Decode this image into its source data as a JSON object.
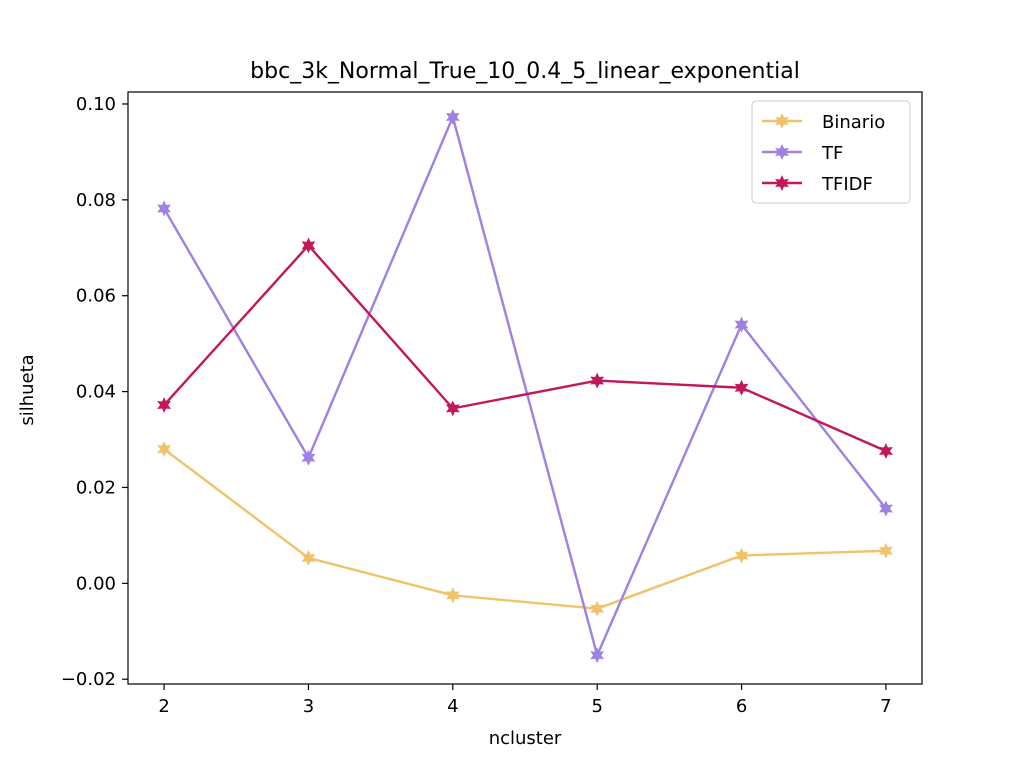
{
  "chart_data": {
    "type": "line",
    "title": "bbc_3k_Normal_True_10_0.4_5_linear_exponential",
    "xlabel": "ncluster",
    "ylabel": "silhueta",
    "x": [
      2,
      3,
      4,
      5,
      6,
      7
    ],
    "xlim": [
      1.75,
      7.25
    ],
    "ylim": [
      -0.021,
      0.1025
    ],
    "x_ticks": [
      "2",
      "3",
      "4",
      "5",
      "6",
      "7"
    ],
    "y_ticks": [
      {
        "value": -0.02,
        "label": "−0.02"
      },
      {
        "value": 0.0,
        "label": "0.00"
      },
      {
        "value": 0.02,
        "label": "0.02"
      },
      {
        "value": 0.04,
        "label": "0.04"
      },
      {
        "value": 0.06,
        "label": "0.06"
      },
      {
        "value": 0.08,
        "label": "0.08"
      },
      {
        "value": 0.1,
        "label": "0.10"
      }
    ],
    "legend_position": "top-right",
    "grid": false,
    "marker": "star",
    "series": [
      {
        "name": "Binario",
        "color": "#f0c36a",
        "values": [
          0.028,
          0.0053,
          -0.0025,
          -0.0053,
          0.0058,
          0.0068
        ]
      },
      {
        "name": "TF",
        "color": "#9f80e3",
        "values": [
          0.0782,
          0.0262,
          0.0973,
          -0.015,
          0.054,
          0.0156
        ]
      },
      {
        "name": "TFIDF",
        "color": "#c2185b",
        "values": [
          0.0372,
          0.0705,
          0.0365,
          0.0423,
          0.0408,
          0.0276
        ]
      }
    ]
  }
}
